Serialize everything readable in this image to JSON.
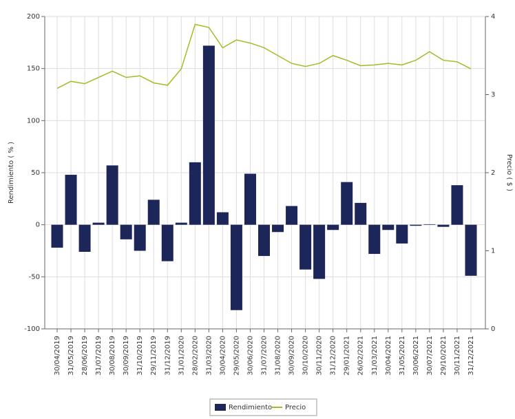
{
  "chart_data": {
    "type": "bar-line",
    "y_label": "Rendimiento  ( % )",
    "y2_label": "Precio  ( $ )",
    "categories": [
      "30/04/2019",
      "31/05/2019",
      "28/06/2019",
      "31/07/2019",
      "30/08/2019",
      "30/09/2019",
      "31/10/2019",
      "29/11/2019",
      "31/12/2019",
      "31/01/2020",
      "28/02/2020",
      "31/03/2020",
      "30/04/2020",
      "29/05/2020",
      "30/06/2020",
      "31/07/2020",
      "31/08/2020",
      "30/09/2020",
      "30/10/2020",
      "30/11/2020",
      "31/12/2020",
      "29/01/2021",
      "26/02/2021",
      "31/03/2021",
      "30/04/2021",
      "31/05/2021",
      "30/06/2021",
      "30/07/2021",
      "29/10/2021",
      "30/11/2021",
      "31/12/2021"
    ],
    "series": [
      {
        "name": "Rendimiento",
        "kind": "bar",
        "color": "#1c2659",
        "values": [
          -22,
          48,
          -26,
          2,
          57,
          -14,
          -25,
          24,
          -35,
          2,
          60,
          172,
          12,
          -82,
          49,
          -30,
          -7,
          18,
          -43,
          -52,
          -5,
          41,
          21,
          -28,
          -5,
          -18,
          -1,
          0.5,
          -2,
          38,
          -49
        ]
      },
      {
        "name": "Precio",
        "kind": "line",
        "axis": "y2",
        "color": "#a9b823",
        "values": [
          3.08,
          3.17,
          3.14,
          3.22,
          3.3,
          3.22,
          3.24,
          3.15,
          3.12,
          3.33,
          3.9,
          3.86,
          3.6,
          3.7,
          3.66,
          3.6,
          3.5,
          3.4,
          3.36,
          3.4,
          3.5,
          3.44,
          3.37,
          3.38,
          3.4,
          3.38,
          3.44,
          3.55,
          3.44,
          3.42,
          3.33
        ]
      }
    ],
    "ylim": [
      -100,
      200
    ],
    "yticks": [
      -100,
      -50,
      0,
      50,
      100,
      150,
      200
    ],
    "y2lim": [
      0,
      4
    ],
    "y2ticks": [
      0,
      1,
      2,
      3,
      4
    ],
    "grid": true,
    "legend": "bottom"
  }
}
